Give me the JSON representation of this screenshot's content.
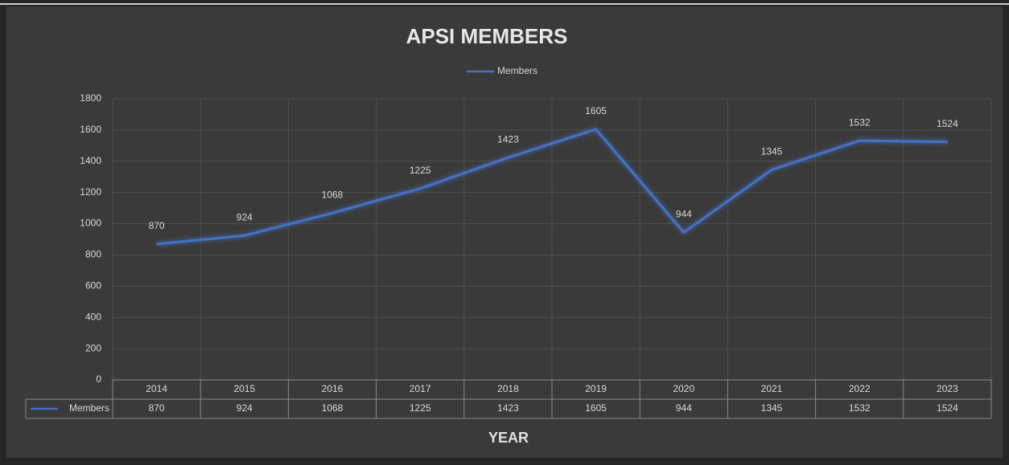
{
  "chart_data": {
    "type": "line",
    "title": "APSI MEMBERS",
    "x_label": "YEAR",
    "categories": [
      "2014",
      "2015",
      "2016",
      "2017",
      "2018",
      "2019",
      "2020",
      "2021",
      "2022",
      "2023"
    ],
    "series": [
      {
        "name": "Members",
        "color": "#4472c4",
        "values": [
          870,
          924,
          1068,
          1225,
          1423,
          1605,
          944,
          1345,
          1532,
          1524
        ]
      }
    ],
    "ylim": [
      0,
      1800
    ],
    "yticks": [
      0,
      200,
      400,
      600,
      800,
      1000,
      1200,
      1400,
      1600,
      1800
    ],
    "grid": true,
    "legend": "top"
  }
}
